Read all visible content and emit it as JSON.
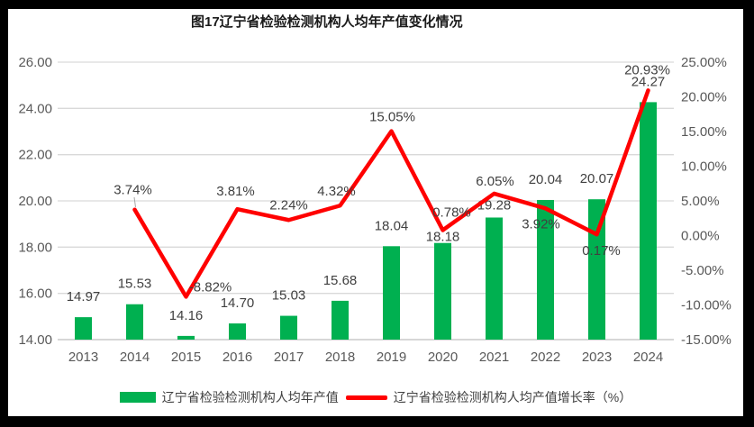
{
  "title": "图17辽宁省检验检测机构人均年产值变化情况",
  "frame": {
    "border_color": "#000000",
    "chart_background": "#FFFFFF"
  },
  "colors": {
    "bar": "#00B050",
    "line": "#FF0000",
    "grid": "#D9D9D9",
    "axis_line": "#BFBFBF",
    "tick_text": "#595959",
    "data_label": "#404040",
    "title_text": "#1A1A1A",
    "leader_line": "#A6A6A6"
  },
  "legend": {
    "bar_label": "辽宁省检验检测机构人均年产值",
    "line_label": "辽宁省检验检测机构人均产值增长率（%）"
  },
  "chart_data": {
    "type": "bar+line",
    "title": "图17辽宁省检验检测机构人均年产值变化情况",
    "categories": [
      "2013",
      "2014",
      "2015",
      "2016",
      "2017",
      "2018",
      "2019",
      "2020",
      "2021",
      "2022",
      "2023",
      "2024"
    ],
    "series": [
      {
        "name": "辽宁省检验检测机构人均年产值",
        "type": "bar",
        "axis": "left",
        "color": "#00B050",
        "values": [
          14.97,
          15.53,
          14.16,
          14.7,
          15.03,
          15.68,
          18.04,
          18.18,
          19.28,
          20.04,
          20.07,
          24.27
        ],
        "labels": [
          "14.97",
          "15.53",
          "14.16",
          "14.70",
          "15.03",
          "15.68",
          "18.04",
          "18.18",
          "19.28",
          "20.04",
          "20.07",
          "24.27"
        ]
      },
      {
        "name": "辽宁省检验检测机构人均产值增长率（%）",
        "type": "line",
        "axis": "right",
        "color": "#FF0000",
        "values": [
          null,
          3.74,
          -8.82,
          3.81,
          2.24,
          4.32,
          15.05,
          0.78,
          6.05,
          3.92,
          0.17,
          20.93
        ],
        "labels": [
          null,
          "3.74%",
          "-8.82%",
          "3.81%",
          "2.24%",
          "4.32%",
          "15.05%",
          "0.78%",
          "6.05%",
          "3.92%",
          "0.17%",
          "20.93%"
        ]
      }
    ],
    "left_axis": {
      "min": 14,
      "max": 26,
      "step": 2,
      "ticks": [
        "26.00",
        "24.00",
        "22.00",
        "20.00",
        "18.00",
        "16.00",
        "14.00"
      ]
    },
    "right_axis": {
      "min": -15,
      "max": 25,
      "step": 5,
      "ticks": [
        "25.00%",
        "20.00%",
        "15.00%",
        "10.00%",
        "5.00%",
        "0.00%",
        "-5.00%",
        "-10.00%",
        "-15.00%"
      ]
    },
    "grid": true,
    "legend_position": "bottom"
  }
}
